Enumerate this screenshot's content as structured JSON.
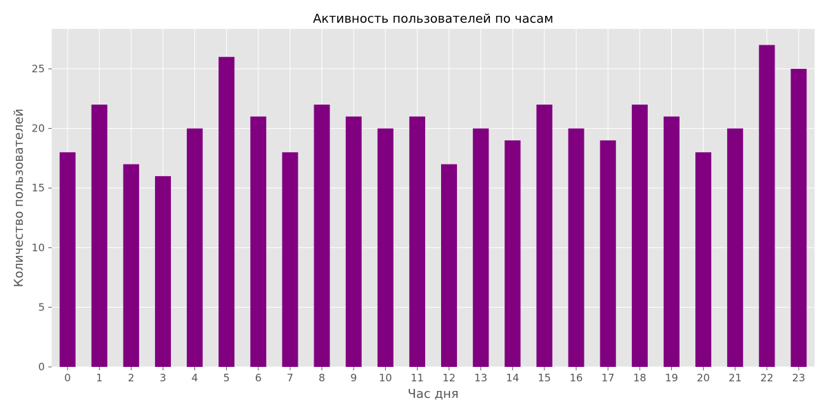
{
  "chart_data": {
    "type": "bar",
    "title": "Активность пользователей по часам",
    "xlabel": "Час дня",
    "ylabel": "Количество пользователей",
    "categories": [
      "0",
      "1",
      "2",
      "3",
      "4",
      "5",
      "6",
      "7",
      "8",
      "9",
      "10",
      "11",
      "12",
      "13",
      "14",
      "15",
      "16",
      "17",
      "18",
      "19",
      "20",
      "21",
      "22",
      "23"
    ],
    "values": [
      18,
      22,
      17,
      16,
      20,
      26,
      21,
      18,
      22,
      21,
      20,
      21,
      17,
      20,
      19,
      22,
      20,
      19,
      22,
      21,
      18,
      20,
      27,
      25
    ],
    "ylim": [
      0,
      28.35
    ],
    "yticks": [
      0,
      5,
      10,
      15,
      20,
      25
    ],
    "grid": true,
    "legend": "none",
    "colors": {
      "bar": "#800080",
      "plot_background": "#e5e5e5",
      "grid": "#ffffff"
    }
  }
}
